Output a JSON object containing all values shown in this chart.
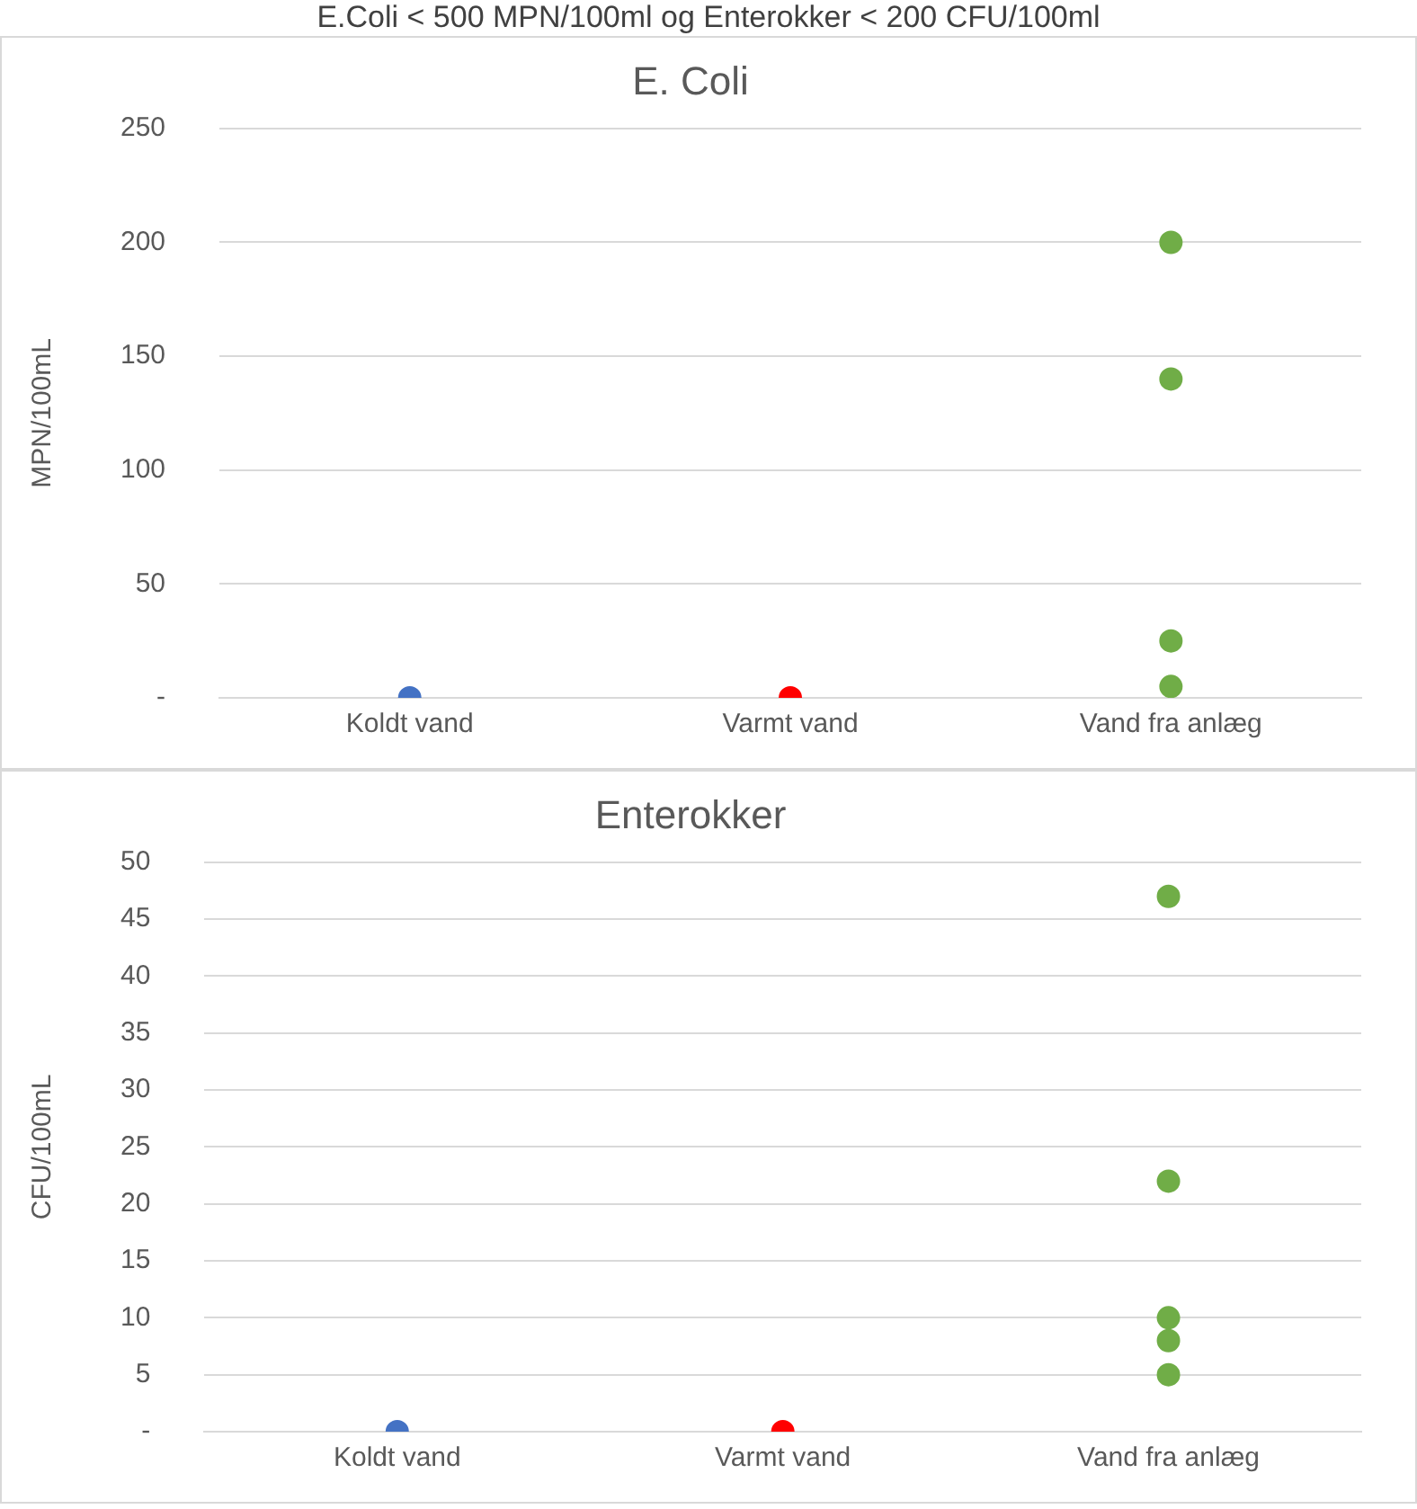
{
  "chart_data": [
    {
      "type": "scatter",
      "title": "E. Coli",
      "ylabel": "MPN/100mL",
      "annotations": [
        "E.Coli < 500 MPN/100ml og Enterokker < 200 CFU/100ml"
      ],
      "categories": [
        "Koldt vand",
        "Varmt vand",
        "Vand fra anlæg"
      ],
      "series": [
        {
          "color": "#4472c4",
          "x": [
            "Koldt vand"
          ],
          "values": [
            0
          ]
        },
        {
          "color": "#ff0000",
          "x": [
            "Varmt vand"
          ],
          "values": [
            0
          ]
        },
        {
          "color": "#70ad47",
          "x": [
            "Vand fra anlæg",
            "Vand fra anlæg",
            "Vand fra anlæg",
            "Vand fra anlæg"
          ],
          "values": [
            200,
            140,
            25,
            5
          ]
        }
      ],
      "ylim": [
        0,
        250
      ],
      "yticks": [
        {
          "value": 0,
          "label": "-"
        },
        50,
        100,
        150,
        200,
        250
      ],
      "grid": "y",
      "legend": false,
      "marker": "circle"
    },
    {
      "type": "scatter",
      "title": "Enterokker",
      "ylabel": "CFU/100mL",
      "categories": [
        "Koldt vand",
        "Varmt vand",
        "Vand fra anlæg"
      ],
      "series": [
        {
          "color": "#4472c4",
          "x": [
            "Koldt vand"
          ],
          "values": [
            0
          ]
        },
        {
          "color": "#ff0000",
          "x": [
            "Varmt vand"
          ],
          "values": [
            0
          ]
        },
        {
          "color": "#70ad47",
          "x": [
            "Vand fra anlæg",
            "Vand fra anlæg",
            "Vand fra anlæg",
            "Vand fra anlæg",
            "Vand fra anlæg"
          ],
          "values": [
            47,
            22,
            10,
            8,
            5
          ]
        }
      ],
      "ylim": [
        0,
        50
      ],
      "yticks": [
        {
          "value": 0,
          "label": "-"
        },
        5,
        10,
        15,
        20,
        25,
        30,
        35,
        40,
        45,
        50
      ],
      "grid": "y",
      "legend": false,
      "marker": "circle"
    }
  ]
}
